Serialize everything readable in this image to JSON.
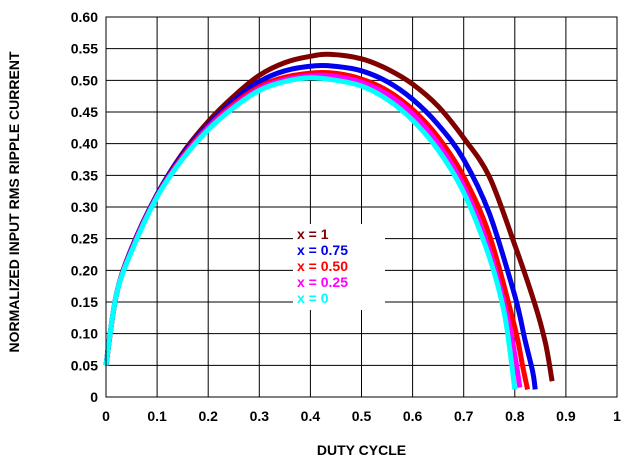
{
  "chart_data": {
    "type": "line",
    "title": "",
    "xlabel": "DUTY CYCLE",
    "ylabel": "NORMALIZED INPUT RMS RIPPLE CURRENT",
    "xlim": [
      0,
      1
    ],
    "ylim": [
      0,
      0.6
    ],
    "x_ticks": [
      {
        "value": 0,
        "label": "0"
      },
      {
        "value": 0.1,
        "label": "0.1"
      },
      {
        "value": 0.2,
        "label": "0.2"
      },
      {
        "value": 0.3,
        "label": "0.3"
      },
      {
        "value": 0.4,
        "label": "0.4"
      },
      {
        "value": 0.5,
        "label": "0.5"
      },
      {
        "value": 0.6,
        "label": "0.6"
      },
      {
        "value": 0.7,
        "label": "0.7"
      },
      {
        "value": 0.8,
        "label": "0.8"
      },
      {
        "value": 0.9,
        "label": "0.9"
      },
      {
        "value": 1,
        "label": "1"
      }
    ],
    "y_ticks": [
      {
        "value": 0,
        "label": "0"
      },
      {
        "value": 0.05,
        "label": "0.05"
      },
      {
        "value": 0.1,
        "label": "0.10"
      },
      {
        "value": 0.15,
        "label": "0.15"
      },
      {
        "value": 0.2,
        "label": "0.20"
      },
      {
        "value": 0.25,
        "label": "0.25"
      },
      {
        "value": 0.3,
        "label": "0.30"
      },
      {
        "value": 0.35,
        "label": "0.35"
      },
      {
        "value": 0.4,
        "label": "0.40"
      },
      {
        "value": 0.45,
        "label": "0.45"
      },
      {
        "value": 0.5,
        "label": "0.50"
      },
      {
        "value": 0.55,
        "label": "0.55"
      },
      {
        "value": 0.6,
        "label": "0.60"
      }
    ],
    "grid": true,
    "legend_position": "center",
    "series": [
      {
        "name": "x = 1",
        "color": "#800000",
        "dmax": 0.873,
        "x": [
          0.0,
          0.02,
          0.05,
          0.1,
          0.15,
          0.2,
          0.25,
          0.3,
          0.35,
          0.4,
          0.44,
          0.5,
          0.55,
          0.6,
          0.65,
          0.7,
          0.75,
          0.8,
          0.84,
          0.86,
          0.873
        ],
        "y": [
          0.05,
          0.16,
          0.235,
          0.32,
          0.385,
          0.435,
          0.475,
          0.508,
          0.528,
          0.538,
          0.541,
          0.534,
          0.518,
          0.494,
          0.459,
          0.409,
          0.348,
          0.24,
          0.145,
          0.085,
          0.025
        ]
      },
      {
        "name": "x = 0.75",
        "color": "#0000ee",
        "dmax": 0.84,
        "x": [
          0.0,
          0.02,
          0.05,
          0.1,
          0.15,
          0.2,
          0.25,
          0.3,
          0.35,
          0.41,
          0.45,
          0.5,
          0.55,
          0.6,
          0.65,
          0.7,
          0.75,
          0.8,
          0.82,
          0.835,
          0.84
        ],
        "y": [
          0.05,
          0.16,
          0.235,
          0.32,
          0.383,
          0.43,
          0.468,
          0.498,
          0.515,
          0.523,
          0.522,
          0.515,
          0.498,
          0.47,
          0.43,
          0.375,
          0.29,
          0.16,
          0.09,
          0.04,
          0.012
        ]
      },
      {
        "name": "x = 0.50",
        "color": "#ff0000",
        "dmax": 0.825,
        "x": [
          0.0,
          0.02,
          0.05,
          0.1,
          0.15,
          0.2,
          0.25,
          0.3,
          0.35,
          0.41,
          0.45,
          0.5,
          0.55,
          0.6,
          0.65,
          0.7,
          0.75,
          0.8,
          0.815,
          0.825
        ],
        "y": [
          0.05,
          0.16,
          0.233,
          0.318,
          0.38,
          0.427,
          0.463,
          0.49,
          0.505,
          0.512,
          0.511,
          0.502,
          0.484,
          0.454,
          0.41,
          0.348,
          0.256,
          0.11,
          0.05,
          0.012
        ]
      },
      {
        "name": "x = 0.25",
        "color": "#ff00ff",
        "dmax": 0.81,
        "x": [
          0.0,
          0.02,
          0.05,
          0.1,
          0.15,
          0.2,
          0.25,
          0.3,
          0.35,
          0.41,
          0.45,
          0.5,
          0.55,
          0.6,
          0.65,
          0.7,
          0.75,
          0.79,
          0.81
        ],
        "y": [
          0.05,
          0.16,
          0.232,
          0.317,
          0.378,
          0.425,
          0.46,
          0.487,
          0.501,
          0.508,
          0.506,
          0.497,
          0.478,
          0.447,
          0.4,
          0.333,
          0.232,
          0.11,
          0.015
        ]
      },
      {
        "name": "x = 0",
        "color": "#00ffff",
        "dmax": 0.8,
        "x": [
          0.0,
          0.02,
          0.05,
          0.1,
          0.15,
          0.2,
          0.25,
          0.3,
          0.35,
          0.4,
          0.45,
          0.5,
          0.55,
          0.6,
          0.65,
          0.7,
          0.75,
          0.78,
          0.8
        ],
        "y": [
          0.05,
          0.16,
          0.23,
          0.316,
          0.376,
          0.422,
          0.457,
          0.484,
          0.498,
          0.504,
          0.5,
          0.491,
          0.47,
          0.437,
          0.39,
          0.323,
          0.221,
          0.13,
          0.012
        ]
      }
    ]
  }
}
